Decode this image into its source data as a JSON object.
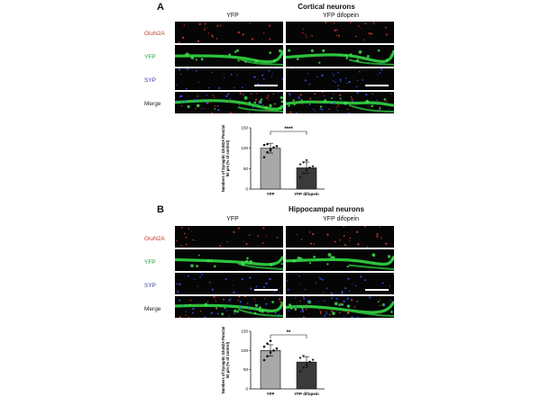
{
  "panel_a": {
    "label": "A",
    "title": "Cortical neurons",
    "col_left": "YFP",
    "col_right": "YFP difopein",
    "rows": [
      "GluN2A",
      "YFP",
      "SYP",
      "Merge"
    ]
  },
  "panel_b": {
    "label": "B",
    "title": "Hippocampal neurons",
    "col_left": "YFP",
    "col_right": "YFP difopein",
    "rows": [
      "GluN2A",
      "YFP",
      "SYP",
      "Merge"
    ]
  },
  "colors": {
    "gluN2A": "#c0392b",
    "yfp": "#1e9e3a",
    "syp": "#3b3fb0",
    "bar_yfp": "#a8a8a8",
    "bar_difopein": "#3a3a3a"
  },
  "chart_data": [
    {
      "type": "bar",
      "panel": "A",
      "categories": [
        "YFP",
        "YFP difopein"
      ],
      "values": [
        100,
        52
      ],
      "errors": [
        12,
        14
      ],
      "ylabel": "Numbers of Synaptic GluN2A Puncta/ 50 μm (% of control)",
      "ylim": [
        0,
        150
      ],
      "yticks": [
        0,
        50,
        100,
        150
      ],
      "significance": "****",
      "points": [
        [
          78,
          90,
          95,
          102,
          105,
          108,
          110,
          98
        ],
        [
          28,
          38,
          45,
          52,
          55,
          60,
          65,
          70
        ]
      ]
    },
    {
      "type": "bar",
      "panel": "B",
      "categories": [
        "YFP",
        "YFP difopein"
      ],
      "values": [
        100,
        70
      ],
      "errors": [
        15,
        14
      ],
      "ylabel": "Numbers of Synaptic GluN2A Puncta/ 50 μm (% of control)",
      "ylim": [
        0,
        150
      ],
      "yticks": [
        0,
        50,
        100,
        150
      ],
      "significance": "**",
      "points": [
        [
          75,
          85,
          95,
          100,
          105,
          110,
          118,
          125
        ],
        [
          45,
          55,
          62,
          70,
          75,
          80,
          85,
          60
        ]
      ]
    }
  ]
}
